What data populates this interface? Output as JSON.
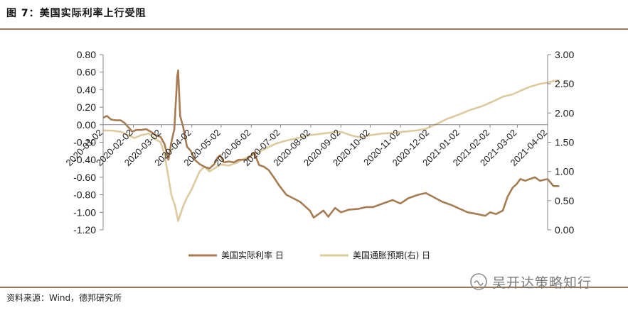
{
  "figure": {
    "title": "图 7：美国实际利率上行受阻",
    "source": "资料来源：Wind，德邦研究所",
    "watermark": "吴开达策略知行"
  },
  "chart_data": {
    "type": "line",
    "title": "",
    "xlabel": "",
    "ylabel": "",
    "x_tick_labels": [
      "2020-01-02",
      "2020-02-02",
      "2020-03-02",
      "2020-04-02",
      "2020-05-02",
      "2020-06-02",
      "2020-07-02",
      "2020-08-02",
      "2020-09-02",
      "2020-10-02",
      "2020-11-02",
      "2020-12-02",
      "2021-01-02",
      "2021-02-02",
      "2021-03-02",
      "2021-04-02"
    ],
    "y_left": {
      "ticks": [
        "0.80",
        "0.60",
        "0.40",
        "0.20",
        "0.00",
        "-0.20",
        "-0.40",
        "-0.60",
        "-0.80",
        "-1.00",
        "-1.20"
      ],
      "min": -1.2,
      "max": 0.8
    },
    "y_right": {
      "ticks": [
        "3.00",
        "2.50",
        "2.00",
        "1.50",
        "1.00",
        "0.50",
        "0.00"
      ],
      "min": 0.0,
      "max": 3.0
    },
    "grid": false,
    "legend_position": "bottom",
    "colors": {
      "real_rate": "#a67c52",
      "breakeven": "#dccb9f",
      "axis": "#888888",
      "rule": "#9a7b5c"
    },
    "series": [
      {
        "name": "美国实际利率 日",
        "axis": "left",
        "points": [
          [
            "2020-01-02",
            0.08
          ],
          [
            "2020-01-06",
            0.1
          ],
          [
            "2020-01-10",
            0.06
          ],
          [
            "2020-01-15",
            0.05
          ],
          [
            "2020-01-20",
            0.05
          ],
          [
            "2020-01-24",
            0.02
          ],
          [
            "2020-01-28",
            -0.03
          ],
          [
            "2020-02-01",
            -0.08
          ],
          [
            "2020-02-05",
            -0.06
          ],
          [
            "2020-02-10",
            -0.06
          ],
          [
            "2020-02-15",
            -0.05
          ],
          [
            "2020-02-20",
            -0.08
          ],
          [
            "2020-02-25",
            -0.12
          ],
          [
            "2020-03-01",
            -0.14
          ],
          [
            "2020-03-05",
            -0.22
          ],
          [
            "2020-03-09",
            -0.4
          ],
          [
            "2020-03-12",
            -0.2
          ],
          [
            "2020-03-15",
            -0.05
          ],
          [
            "2020-03-18",
            0.55
          ],
          [
            "2020-03-19",
            0.62
          ],
          [
            "2020-03-21",
            0.1
          ],
          [
            "2020-03-24",
            -0.02
          ],
          [
            "2020-03-28",
            -0.25
          ],
          [
            "2020-04-01",
            -0.3
          ],
          [
            "2020-04-05",
            -0.4
          ],
          [
            "2020-04-10",
            -0.45
          ],
          [
            "2020-04-15",
            -0.48
          ],
          [
            "2020-04-20",
            -0.5
          ],
          [
            "2020-04-25",
            -0.45
          ],
          [
            "2020-04-28",
            -0.38
          ],
          [
            "2020-05-01",
            -0.35
          ],
          [
            "2020-05-05",
            -0.43
          ],
          [
            "2020-05-10",
            -0.42
          ],
          [
            "2020-05-15",
            -0.43
          ],
          [
            "2020-05-20",
            -0.4
          ],
          [
            "2020-05-28",
            -0.4
          ],
          [
            "2020-06-05",
            -0.32
          ],
          [
            "2020-06-10",
            -0.46
          ],
          [
            "2020-06-15",
            -0.48
          ],
          [
            "2020-06-20",
            -0.52
          ],
          [
            "2020-06-25",
            -0.6
          ],
          [
            "2020-07-01",
            -0.7
          ],
          [
            "2020-07-08",
            -0.8
          ],
          [
            "2020-07-15",
            -0.84
          ],
          [
            "2020-07-22",
            -0.88
          ],
          [
            "2020-08-01",
            -0.98
          ],
          [
            "2020-08-05",
            -1.06
          ],
          [
            "2020-08-10",
            -1.02
          ],
          [
            "2020-08-15",
            -0.98
          ],
          [
            "2020-08-20",
            -1.05
          ],
          [
            "2020-08-27",
            -0.95
          ],
          [
            "2020-09-02",
            -1.0
          ],
          [
            "2020-09-10",
            -0.97
          ],
          [
            "2020-09-20",
            -0.96
          ],
          [
            "2020-09-28",
            -0.94
          ],
          [
            "2020-10-05",
            -0.94
          ],
          [
            "2020-10-15",
            -0.9
          ],
          [
            "2020-10-25",
            -0.86
          ],
          [
            "2020-11-02",
            -0.9
          ],
          [
            "2020-11-10",
            -0.84
          ],
          [
            "2020-11-20",
            -0.8
          ],
          [
            "2020-11-28",
            -0.78
          ],
          [
            "2020-12-05",
            -0.82
          ],
          [
            "2020-12-15",
            -0.88
          ],
          [
            "2020-12-25",
            -0.92
          ],
          [
            "2021-01-02",
            -0.96
          ],
          [
            "2021-01-10",
            -1.0
          ],
          [
            "2021-01-20",
            -1.02
          ],
          [
            "2021-01-28",
            -1.04
          ],
          [
            "2021-02-02",
            -1.0
          ],
          [
            "2021-02-08",
            -1.02
          ],
          [
            "2021-02-15",
            -0.98
          ],
          [
            "2021-02-20",
            -0.82
          ],
          [
            "2021-02-25",
            -0.72
          ],
          [
            "2021-03-01",
            -0.68
          ],
          [
            "2021-03-05",
            -0.62
          ],
          [
            "2021-03-10",
            -0.64
          ],
          [
            "2021-03-15",
            -0.62
          ],
          [
            "2021-03-20",
            -0.6
          ],
          [
            "2021-03-25",
            -0.64
          ],
          [
            "2021-04-02",
            -0.62
          ],
          [
            "2021-04-08",
            -0.7
          ],
          [
            "2021-04-14",
            -0.7
          ]
        ]
      },
      {
        "name": "美国通胀预期(右) 日",
        "axis": "right",
        "points": [
          [
            "2020-01-02",
            1.7
          ],
          [
            "2020-01-10",
            1.7
          ],
          [
            "2020-01-20",
            1.68
          ],
          [
            "2020-01-28",
            1.62
          ],
          [
            "2020-02-03",
            1.57
          ],
          [
            "2020-02-10",
            1.62
          ],
          [
            "2020-02-18",
            1.65
          ],
          [
            "2020-02-25",
            1.55
          ],
          [
            "2020-03-01",
            1.5
          ],
          [
            "2020-03-05",
            1.3
          ],
          [
            "2020-03-09",
            0.9
          ],
          [
            "2020-03-12",
            0.6
          ],
          [
            "2020-03-16",
            0.4
          ],
          [
            "2020-03-19",
            0.15
          ],
          [
            "2020-03-24",
            0.4
          ],
          [
            "2020-03-28",
            0.55
          ],
          [
            "2020-04-02",
            0.7
          ],
          [
            "2020-04-06",
            0.85
          ],
          [
            "2020-04-10",
            1.0
          ],
          [
            "2020-04-15",
            1.08
          ],
          [
            "2020-04-20",
            1.0
          ],
          [
            "2020-04-25",
            1.05
          ],
          [
            "2020-05-02",
            1.12
          ],
          [
            "2020-05-10",
            1.1
          ],
          [
            "2020-05-18",
            1.15
          ],
          [
            "2020-05-26",
            1.22
          ],
          [
            "2020-06-04",
            1.28
          ],
          [
            "2020-06-12",
            1.35
          ],
          [
            "2020-06-20",
            1.42
          ],
          [
            "2020-06-28",
            1.48
          ],
          [
            "2020-07-06",
            1.52
          ],
          [
            "2020-07-14",
            1.55
          ],
          [
            "2020-07-22",
            1.58
          ],
          [
            "2020-08-01",
            1.62
          ],
          [
            "2020-08-10",
            1.64
          ],
          [
            "2020-08-20",
            1.66
          ],
          [
            "2020-09-02",
            1.68
          ],
          [
            "2020-09-12",
            1.62
          ],
          [
            "2020-09-22",
            1.58
          ],
          [
            "2020-10-02",
            1.62
          ],
          [
            "2020-10-15",
            1.65
          ],
          [
            "2020-10-28",
            1.66
          ],
          [
            "2020-11-05",
            1.68
          ],
          [
            "2020-11-18",
            1.7
          ],
          [
            "2020-11-28",
            1.73
          ],
          [
            "2020-12-10",
            1.82
          ],
          [
            "2020-12-20",
            1.9
          ],
          [
            "2021-01-02",
            1.98
          ],
          [
            "2021-01-12",
            2.05
          ],
          [
            "2021-01-25",
            2.12
          ],
          [
            "2021-02-05",
            2.2
          ],
          [
            "2021-02-15",
            2.28
          ],
          [
            "2021-02-25",
            2.32
          ],
          [
            "2021-03-05",
            2.38
          ],
          [
            "2021-03-15",
            2.45
          ],
          [
            "2021-03-25",
            2.5
          ],
          [
            "2021-04-02",
            2.52
          ],
          [
            "2021-04-08",
            2.55
          ],
          [
            "2021-04-14",
            2.56
          ]
        ]
      }
    ]
  }
}
